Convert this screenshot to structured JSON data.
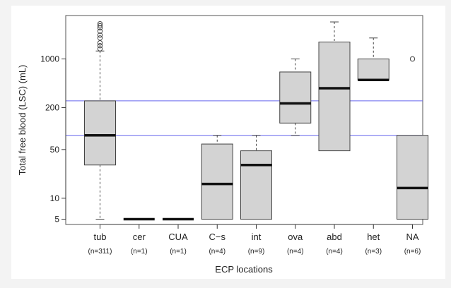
{
  "chart_data": {
    "type": "box",
    "title": "",
    "xlabel": "ECP locations",
    "ylabel": "Total free blood (LSC) (mL)",
    "yscale": "log",
    "ylim": [
      4.2,
      4200
    ],
    "y_ticks": [
      5,
      10,
      50,
      200,
      1000
    ],
    "y_tick_labels": [
      "5",
      "10",
      "50",
      "200",
      "1000"
    ],
    "reference_lines": [
      {
        "y": 250,
        "color": "#6666ee"
      },
      {
        "y": 80,
        "color": "#6666ee"
      }
    ],
    "box_fill": "#d3d3d3",
    "categories": [
      {
        "label": "tub",
        "n_label": "(n=311)",
        "whisker_low": 5,
        "q1": 30,
        "median": 80,
        "q3": 250,
        "whisker_high": 1300,
        "outliers": [
          1400,
          1550,
          1700,
          2000,
          2200,
          2500,
          2800,
          3000,
          3200
        ]
      },
      {
        "label": "cer",
        "n_label": "(n=1)",
        "whisker_low": 5,
        "q1": 5,
        "median": 5,
        "q3": 5,
        "whisker_high": 5,
        "outliers": []
      },
      {
        "label": "CUA",
        "n_label": "(n=1)",
        "whisker_low": 5,
        "q1": 5,
        "median": 5,
        "q3": 5,
        "whisker_high": 5,
        "outliers": []
      },
      {
        "label": "C−s",
        "n_label": "(n=4)",
        "whisker_low": 5,
        "q1": 5,
        "median": 16,
        "q3": 60,
        "whisker_high": 80,
        "outliers": []
      },
      {
        "label": "int",
        "n_label": "(n=9)",
        "whisker_low": 5,
        "q1": 5,
        "median": 30,
        "q3": 48,
        "whisker_high": 80,
        "outliers": []
      },
      {
        "label": "ova",
        "n_label": "(n=4)",
        "whisker_low": 80,
        "q1": 120,
        "median": 230,
        "q3": 650,
        "whisker_high": 1000,
        "outliers": []
      },
      {
        "label": "abd",
        "n_label": "(n=4)",
        "whisker_low": 48,
        "q1": 48,
        "median": 380,
        "q3": 1750,
        "whisker_high": 3400,
        "outliers": []
      },
      {
        "label": "het",
        "n_label": "(n=3)",
        "whisker_low": 500,
        "q1": 500,
        "median": 500,
        "q3": 1000,
        "whisker_high": 2000,
        "outliers": []
      },
      {
        "label": "NA",
        "n_label": "(n=6)",
        "whisker_low": 5,
        "q1": 5,
        "median": 14,
        "q3": 80,
        "whisker_high": 80,
        "outliers": [
          1000
        ]
      }
    ]
  }
}
